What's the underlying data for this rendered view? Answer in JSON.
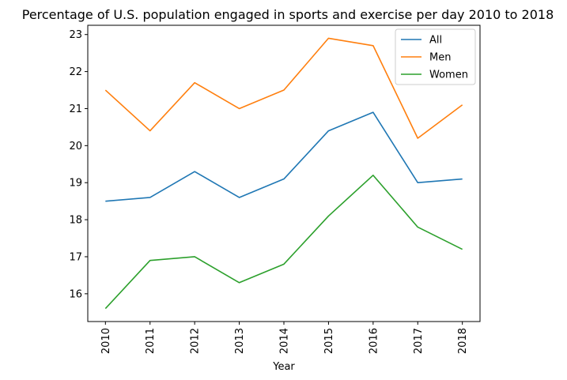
{
  "chart_data": {
    "type": "line",
    "title": "Percentage of U.S. population engaged in sports and exercise per day 2010 to 2018",
    "xlabel": "Year",
    "ylabel": "",
    "x": [
      "2010",
      "2011",
      "2012",
      "2013",
      "2014",
      "2015",
      "2016",
      "2017",
      "2018"
    ],
    "y_ticks": [
      "16",
      "17",
      "18",
      "19",
      "20",
      "21",
      "22",
      "23"
    ],
    "ylim": [
      15.25,
      23.25
    ],
    "grid": false,
    "legend_position": "top-right",
    "series": [
      {
        "name": "All",
        "color": "#1f77b4",
        "values": [
          18.5,
          18.6,
          19.3,
          18.6,
          19.1,
          20.4,
          20.9,
          19.0,
          19.1
        ]
      },
      {
        "name": "Men",
        "color": "#ff7f0e",
        "values": [
          21.5,
          20.4,
          21.7,
          21.0,
          21.5,
          22.9,
          22.7,
          20.2,
          21.1
        ]
      },
      {
        "name": "Women",
        "color": "#2ca02c",
        "values": [
          15.6,
          16.9,
          17.0,
          16.3,
          16.8,
          18.1,
          19.2,
          17.8,
          17.2
        ]
      }
    ]
  }
}
